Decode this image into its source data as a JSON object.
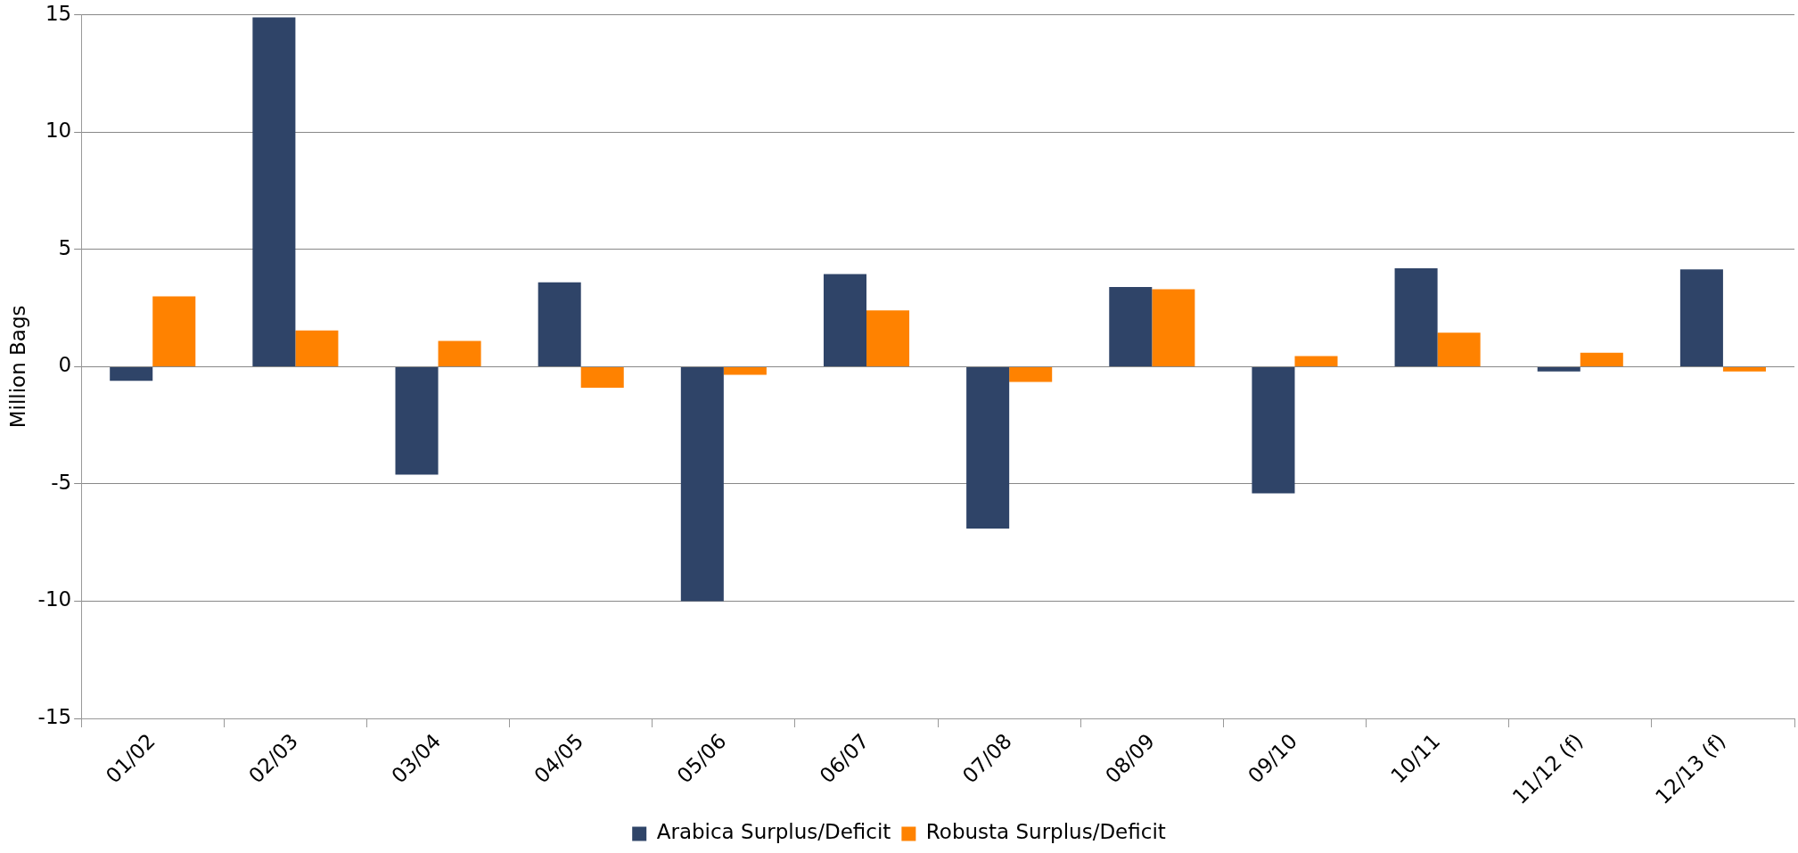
{
  "chart_data": {
    "type": "bar",
    "ylabel": "Million Bags",
    "categories": [
      "01/02",
      "02/03",
      "03/04",
      "04/05",
      "05/06",
      "06/07",
      "07/08",
      "08/09",
      "09/10",
      "10/11",
      "11/12 (f)",
      "12/13 (f)"
    ],
    "series": [
      {
        "name": "Arabica Surplus/Deficit",
        "color": "#2f4468",
        "values": [
          -0.6,
          14.9,
          -4.6,
          3.6,
          -10,
          3.95,
          -6.9,
          3.4,
          -5.4,
          4.2,
          -0.2,
          4.15
        ]
      },
      {
        "name": "Robusta Surplus/Deficit",
        "color": "#ff8200",
        "values": [
          3.0,
          1.55,
          1.1,
          -0.9,
          -0.35,
          2.4,
          -0.65,
          3.3,
          0.45,
          1.45,
          0.6,
          -0.2
        ]
      }
    ],
    "ylim": [
      -15,
      15
    ],
    "yticks": [
      -15,
      -10,
      -5,
      0,
      5,
      10,
      15
    ],
    "grid": "y",
    "legend": "bottom"
  }
}
